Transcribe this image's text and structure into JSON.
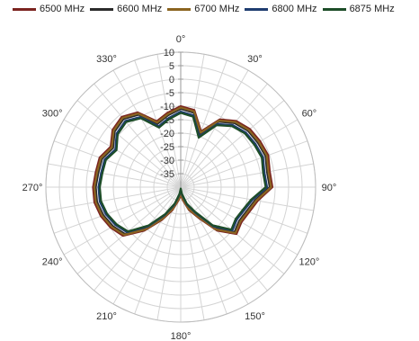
{
  "chart_data": {
    "type": "radar",
    "angles_deg": [
      0,
      10,
      20,
      30,
      40,
      50,
      60,
      70,
      80,
      90,
      100,
      110,
      120,
      130,
      140,
      150,
      160,
      170,
      180,
      190,
      200,
      210,
      220,
      230,
      240,
      250,
      260,
      270,
      280,
      290,
      300,
      310,
      320,
      330,
      340,
      350
    ],
    "angle_ticks": [
      "0°",
      "30°",
      "60°",
      "90°",
      "120°",
      "150°",
      "180°",
      "210°",
      "240°",
      "270°",
      "300°",
      "330°"
    ],
    "r_ticks": [
      "10",
      "5",
      "0",
      "-5",
      "-10",
      "-15",
      "-20",
      "-25",
      "-30",
      "-35"
    ],
    "rlim": [
      -40,
      10
    ],
    "legend_position": "top",
    "series": [
      {
        "name": "6500 MHz",
        "color": "#7b2420",
        "values": [
          -10,
          -11,
          -18,
          -11,
          -8,
          -6.5,
          -6,
          -5.5,
          -6.5,
          -6,
          -11,
          -13,
          -14,
          -13,
          -19,
          -27,
          -31,
          -35,
          -37,
          -35,
          -31,
          -26,
          -19,
          -12,
          -10,
          -8.5,
          -7.5,
          -7.5,
          -8,
          -8,
          -10,
          -7,
          -6,
          -8,
          -14,
          -12
        ]
      },
      {
        "name": "6600 MHz",
        "color": "#2b2b2b",
        "values": [
          -11,
          -12,
          -19,
          -12,
          -9,
          -7.5,
          -7,
          -6.5,
          -7.5,
          -7,
          -12,
          -14,
          -15,
          -14,
          -20,
          -28,
          -32,
          -36,
          -38,
          -36,
          -32,
          -27,
          -20,
          -13,
          -11,
          -9.5,
          -8.5,
          -8.5,
          -9,
          -9,
          -11,
          -8,
          -7,
          -9,
          -15,
          -13
        ]
      },
      {
        "name": "6700 MHz",
        "color": "#8b6420",
        "values": [
          -10.5,
          -11.5,
          -18.5,
          -11.5,
          -8.5,
          -7,
          -6.5,
          -6,
          -7,
          -6.5,
          -11.5,
          -13.5,
          -14.5,
          -13.5,
          -19.5,
          -27.5,
          -31.5,
          -35.5,
          -37.5,
          -35.5,
          -31.5,
          -26.5,
          -19.5,
          -12.5,
          -10.5,
          -9,
          -8,
          -8,
          -8.5,
          -8.5,
          -10.5,
          -7.5,
          -6.5,
          -8.5,
          -14.5,
          -12.5
        ]
      },
      {
        "name": "6800 MHz",
        "color": "#1f3d70",
        "values": [
          -12,
          -13,
          -20,
          -13,
          -10,
          -8.5,
          -8,
          -7.5,
          -8.5,
          -8,
          -13,
          -15,
          -16,
          -15,
          -21,
          -29,
          -33,
          -37,
          -39,
          -37,
          -33,
          -28,
          -21,
          -14,
          -12,
          -10.5,
          -9.5,
          -9.5,
          -10,
          -10,
          -12,
          -9,
          -8,
          -10,
          -16,
          -14
        ]
      },
      {
        "name": "6875 MHz",
        "color": "#1d4d28",
        "values": [
          -12.5,
          -13.5,
          -20.5,
          -13.5,
          -10.5,
          -9,
          -8.5,
          -8,
          -9,
          -8.5,
          -13.5,
          -15.5,
          -16.5,
          -15.5,
          -21.5,
          -29.5,
          -33.5,
          -37.5,
          -39.5,
          -37.5,
          -33.5,
          -28.5,
          -21.5,
          -14.5,
          -12.5,
          -11,
          -10,
          -10,
          -10.5,
          -10.5,
          -12.5,
          -9.5,
          -8.5,
          -10.5,
          -16.5,
          -14.5
        ]
      }
    ]
  }
}
